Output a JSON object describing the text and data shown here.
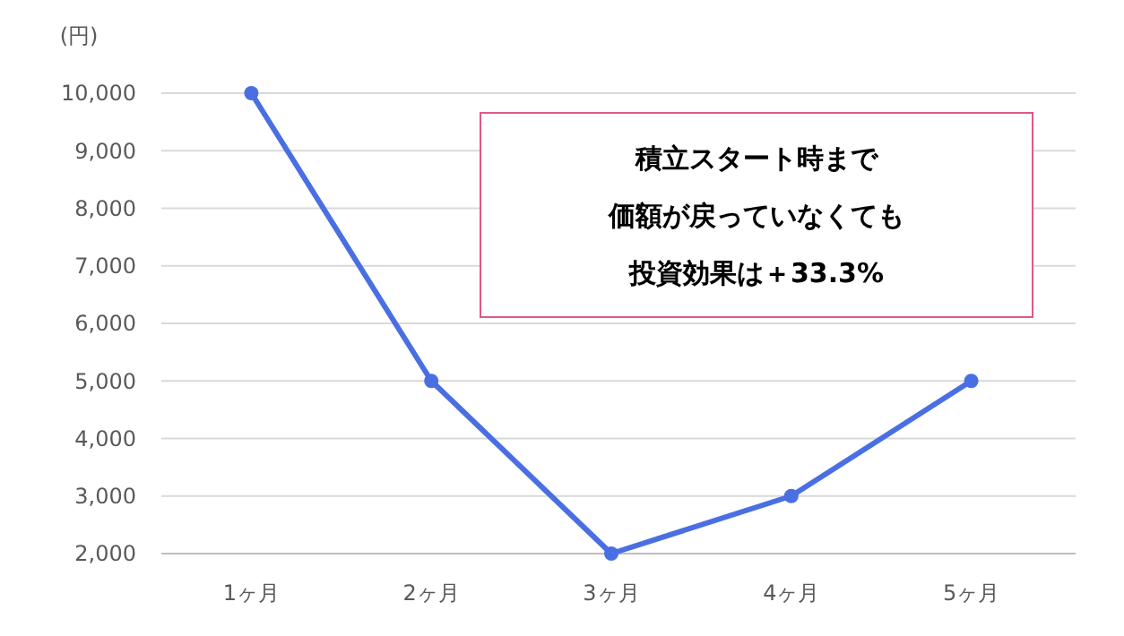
{
  "chart_data": {
    "type": "line",
    "ylabel": "(円)",
    "categories": [
      "1ヶ月",
      "2ヶ月",
      "3ヶ月",
      "4ヶ月",
      "5ヶ月"
    ],
    "series": [
      {
        "color": "#4a6fe3",
        "values": [
          10000,
          5000,
          2000,
          3000,
          5000
        ]
      }
    ],
    "ylim": [
      2000,
      10000
    ],
    "yticks": [
      {
        "value": 2000,
        "label": "2,000"
      },
      {
        "value": 3000,
        "label": "3,000"
      },
      {
        "value": 4000,
        "label": "4,000"
      },
      {
        "value": 5000,
        "label": "5,000"
      },
      {
        "value": 6000,
        "label": "6,000"
      },
      {
        "value": 7000,
        "label": "7,000"
      },
      {
        "value": 8000,
        "label": "8,000"
      },
      {
        "value": 9000,
        "label": "9,000"
      },
      {
        "value": 10000,
        "label": "10,000"
      }
    ],
    "grid": "y",
    "marker": "circle",
    "line_style": "solid",
    "annotations": [
      "積立スタート時まで",
      "価額が戻っていなくても",
      "投資効果は＋33.3%"
    ]
  }
}
